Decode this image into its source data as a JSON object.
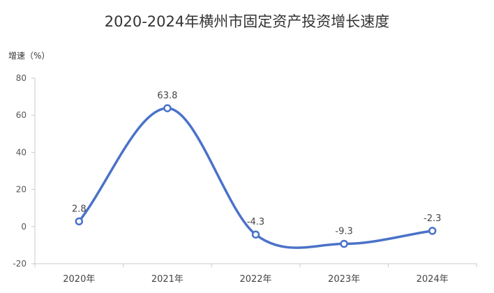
{
  "chart_data": {
    "type": "line",
    "title": "2020-2024年横州市固定资产投资增长速度",
    "ylabel": "增速（%）",
    "xlabel": "",
    "categories": [
      "2020年",
      "2021年",
      "2022年",
      "2023年",
      "2024年"
    ],
    "series": [
      {
        "values": [
          2.8,
          63.8,
          -4.3,
          -9.3,
          -2.3
        ],
        "labels": [
          "2.8",
          "63.8",
          "-4.3",
          "-9.3",
          "-2.3"
        ]
      }
    ],
    "ylim": [
      -20,
      80
    ],
    "yticks": [
      "80",
      "60",
      "40",
      "20",
      "0",
      "-20"
    ],
    "line_color": "#4a72c8",
    "smooth": true,
    "grid": false,
    "legend": "none"
  }
}
